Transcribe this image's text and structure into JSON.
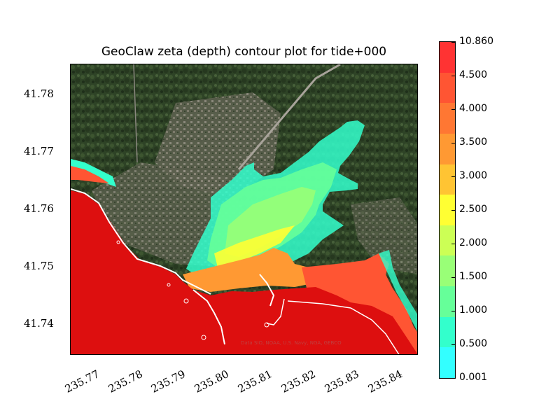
{
  "title": "GeoClaw zeta (depth) contour plot for tide+000",
  "attribution": "Data SIO, NOAA, U.S. Navy, NGA, GEBCO",
  "axes": {
    "x_ticks": [
      "235.77",
      "235.78",
      "235.79",
      "235.80",
      "235.81",
      "235.82",
      "235.83",
      "235.84"
    ],
    "y_ticks": [
      "41.78",
      "41.77",
      "41.76",
      "41.75",
      "41.74"
    ],
    "x_range": [
      235.7655,
      235.8495
    ],
    "y_range": [
      41.735,
      41.7855
    ]
  },
  "colorbar": {
    "labels": [
      "10.860",
      "4.500",
      "4.000",
      "3.500",
      "3.000",
      "2.500",
      "2.000",
      "1.500",
      "1.000",
      "0.500",
      "0.001"
    ],
    "colors": [
      "#ff3333",
      "#ff5533",
      "#ff7733",
      "#ff9933",
      "#ffc433",
      "#ffff33",
      "#ccff55",
      "#99ff77",
      "#66ff99",
      "#33ffcc",
      "#33ffff"
    ]
  },
  "map": {
    "land_color": "#2e4326",
    "town_color": "#6c6a60",
    "ocean_color": "#dd0f0f",
    "coastline_color": "#ffffff"
  }
}
